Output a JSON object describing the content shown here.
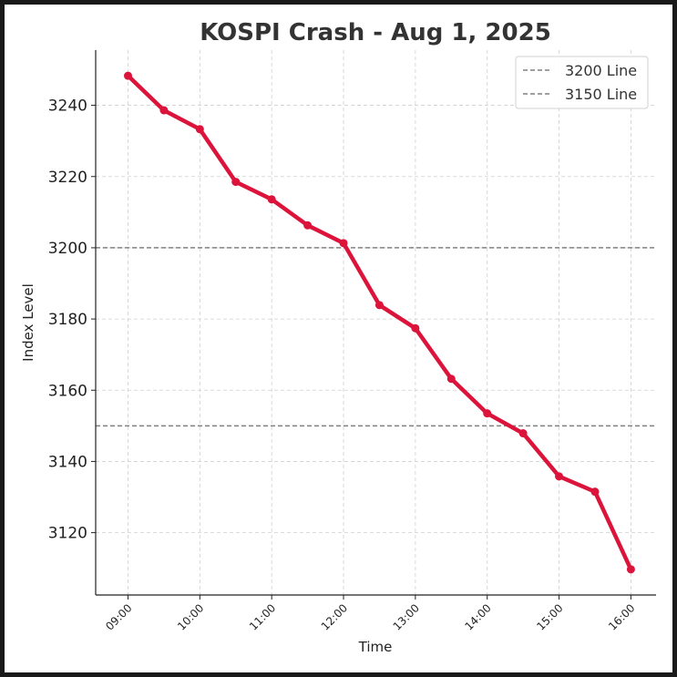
{
  "chart_data": {
    "type": "line",
    "title": "KOSPI Crash - Aug 1, 2025",
    "xlabel": "Time",
    "ylabel": "Index Level",
    "x_tick_labels": [
      "09:00",
      "10:00",
      "11:00",
      "12:00",
      "13:00",
      "14:00",
      "15:00",
      "16:00"
    ],
    "x_hours": [
      9,
      9.5,
      10,
      10.5,
      11,
      11.5,
      12,
      12.5,
      13,
      13.5,
      14,
      14.5,
      15,
      15.5,
      16
    ],
    "y_ticks": [
      3120,
      3140,
      3160,
      3180,
      3200,
      3220,
      3240
    ],
    "xlim": [
      8.55,
      16.35
    ],
    "ylim": [
      3102.5,
      3255.5
    ],
    "grid": true,
    "series": [
      {
        "name": "",
        "color": "#dc143c",
        "values": [
          3248.3,
          3238.6,
          3233.3,
          3218.5,
          3213.6,
          3206.3,
          3201.3,
          3183.9,
          3177.4,
          3163.2,
          3153.5,
          3147.9,
          3135.8,
          3131.5,
          3109.7
        ]
      }
    ],
    "reference_lines": [
      {
        "label": "3200 Line",
        "y": 3200,
        "color": "#808080",
        "style": "dashed"
      },
      {
        "label": "3150 Line",
        "y": 3150,
        "color": "#808080",
        "style": "dashed"
      }
    ],
    "legend_position": "top-right"
  }
}
